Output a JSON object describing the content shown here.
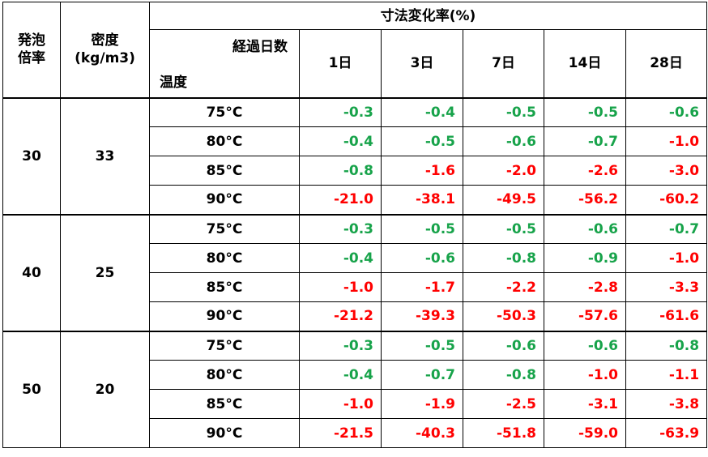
{
  "header": {
    "foam_ratio": "発泡\n倍率",
    "density_line1": "密度",
    "density_line2": "(kg/m3)",
    "dim_change": "寸法変化率(%)",
    "elapsed_days": "経過日数",
    "temperature": "温度",
    "days": [
      "1日",
      "3日",
      "7日",
      "14日",
      "28日"
    ]
  },
  "colors": {
    "green": "#17a34a",
    "red": "#ff0000"
  },
  "groups": [
    {
      "ratio": "30",
      "density": "33",
      "rows": [
        {
          "temp": "75°C",
          "values": [
            {
              "v": "-0.3",
              "c": "green"
            },
            {
              "v": "-0.4",
              "c": "green"
            },
            {
              "v": "-0.5",
              "c": "green"
            },
            {
              "v": "-0.5",
              "c": "green"
            },
            {
              "v": "-0.6",
              "c": "green"
            }
          ]
        },
        {
          "temp": "80°C",
          "values": [
            {
              "v": "-0.4",
              "c": "green"
            },
            {
              "v": "-0.5",
              "c": "green"
            },
            {
              "v": "-0.6",
              "c": "green"
            },
            {
              "v": "-0.7",
              "c": "green"
            },
            {
              "v": "-1.0",
              "c": "red"
            }
          ]
        },
        {
          "temp": "85°C",
          "values": [
            {
              "v": "-0.8",
              "c": "green"
            },
            {
              "v": "-1.6",
              "c": "red"
            },
            {
              "v": "-2.0",
              "c": "red"
            },
            {
              "v": "-2.6",
              "c": "red"
            },
            {
              "v": "-3.0",
              "c": "red"
            }
          ]
        },
        {
          "temp": "90°C",
          "values": [
            {
              "v": "-21.0",
              "c": "red"
            },
            {
              "v": "-38.1",
              "c": "red"
            },
            {
              "v": "-49.5",
              "c": "red"
            },
            {
              "v": "-56.2",
              "c": "red"
            },
            {
              "v": "-60.2",
              "c": "red"
            }
          ]
        }
      ]
    },
    {
      "ratio": "40",
      "density": "25",
      "rows": [
        {
          "temp": "75°C",
          "values": [
            {
              "v": "-0.3",
              "c": "green"
            },
            {
              "v": "-0.5",
              "c": "green"
            },
            {
              "v": "-0.5",
              "c": "green"
            },
            {
              "v": "-0.6",
              "c": "green"
            },
            {
              "v": "-0.7",
              "c": "green"
            }
          ]
        },
        {
          "temp": "80°C",
          "values": [
            {
              "v": "-0.4",
              "c": "green"
            },
            {
              "v": "-0.6",
              "c": "green"
            },
            {
              "v": "-0.8",
              "c": "green"
            },
            {
              "v": "-0.9",
              "c": "green"
            },
            {
              "v": "-1.0",
              "c": "red"
            }
          ]
        },
        {
          "temp": "85°C",
          "values": [
            {
              "v": "-1.0",
              "c": "red"
            },
            {
              "v": "-1.7",
              "c": "red"
            },
            {
              "v": "-2.2",
              "c": "red"
            },
            {
              "v": "-2.8",
              "c": "red"
            },
            {
              "v": "-3.3",
              "c": "red"
            }
          ]
        },
        {
          "temp": "90°C",
          "values": [
            {
              "v": "-21.2",
              "c": "red"
            },
            {
              "v": "-39.3",
              "c": "red"
            },
            {
              "v": "-50.3",
              "c": "red"
            },
            {
              "v": "-57.6",
              "c": "red"
            },
            {
              "v": "-61.6",
              "c": "red"
            }
          ]
        }
      ]
    },
    {
      "ratio": "50",
      "density": "20",
      "rows": [
        {
          "temp": "75°C",
          "values": [
            {
              "v": "-0.3",
              "c": "green"
            },
            {
              "v": "-0.5",
              "c": "green"
            },
            {
              "v": "-0.6",
              "c": "green"
            },
            {
              "v": "-0.6",
              "c": "green"
            },
            {
              "v": "-0.8",
              "c": "green"
            }
          ]
        },
        {
          "temp": "80°C",
          "values": [
            {
              "v": "-0.4",
              "c": "green"
            },
            {
              "v": "-0.7",
              "c": "green"
            },
            {
              "v": "-0.8",
              "c": "green"
            },
            {
              "v": "-1.0",
              "c": "red"
            },
            {
              "v": "-1.1",
              "c": "red"
            }
          ]
        },
        {
          "temp": "85°C",
          "values": [
            {
              "v": "-1.0",
              "c": "red"
            },
            {
              "v": "-1.9",
              "c": "red"
            },
            {
              "v": "-2.5",
              "c": "red"
            },
            {
              "v": "-3.1",
              "c": "red"
            },
            {
              "v": "-3.8",
              "c": "red"
            }
          ]
        },
        {
          "temp": "90°C",
          "values": [
            {
              "v": "-21.5",
              "c": "red"
            },
            {
              "v": "-40.3",
              "c": "red"
            },
            {
              "v": "-51.8",
              "c": "red"
            },
            {
              "v": "-59.0",
              "c": "red"
            },
            {
              "v": "-63.9",
              "c": "red"
            }
          ]
        }
      ]
    }
  ]
}
